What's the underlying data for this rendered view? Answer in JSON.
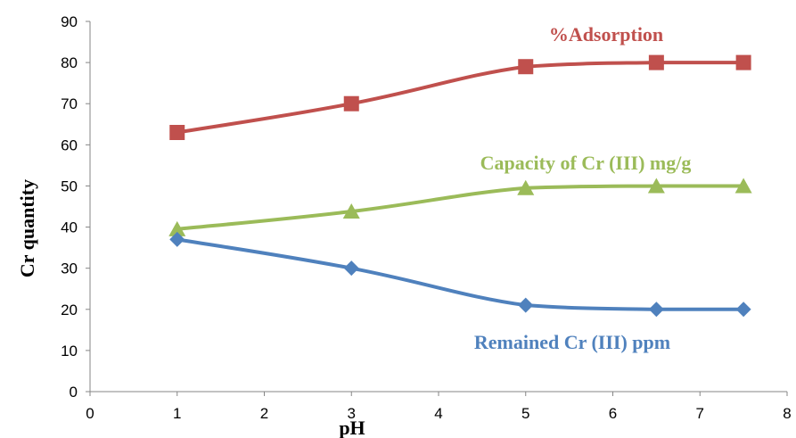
{
  "chart_data": {
    "type": "line",
    "xlabel": "pH",
    "ylabel": "Cr quantity",
    "xlim": [
      0,
      8
    ],
    "ylim": [
      0,
      90
    ],
    "x_ticks": [
      "0",
      "1",
      "2",
      "3",
      "4",
      "5",
      "6",
      "7",
      "8"
    ],
    "y_ticks": [
      "0",
      "10",
      "20",
      "30",
      "40",
      "50",
      "60",
      "70",
      "80",
      "90"
    ],
    "grid": false,
    "legend": "none; series labelled inline",
    "series": [
      {
        "name": "%Adsorption",
        "color": "#c0504d",
        "marker": "square",
        "x": [
          1,
          3,
          5,
          6.5,
          7.5
        ],
        "values": [
          63,
          70,
          79,
          80,
          80
        ]
      },
      {
        "name": "Capacity of Cr (III) mg/g",
        "color": "#9bbb59",
        "marker": "triangle",
        "x": [
          1,
          3,
          5,
          6.5,
          7.5
        ],
        "values": [
          39.5,
          43.8,
          49.5,
          50,
          50
        ]
      },
      {
        "name": "Remained Cr (III) ppm",
        "color": "#4f81bd",
        "marker": "diamond",
        "x": [
          1,
          3,
          5,
          6.5,
          7.5
        ],
        "values": [
          37,
          30,
          21,
          20,
          20
        ]
      }
    ]
  }
}
